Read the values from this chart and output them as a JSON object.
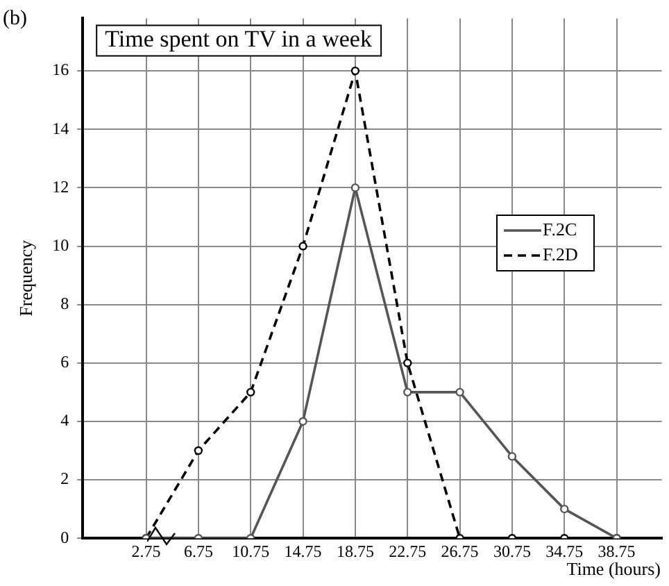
{
  "chart_data": {
    "type": "line",
    "title": "Time spent on TV in a week",
    "xlabel": "Time (hours)",
    "ylabel": "Frequency",
    "annotations": [
      "(b)"
    ],
    "x": [
      2.75,
      6.75,
      10.75,
      14.75,
      18.75,
      22.75,
      26.75,
      30.75,
      34.75,
      38.75
    ],
    "series": [
      {
        "name": "F.2C",
        "color": "#555555",
        "line_style": "solid",
        "values": [
          0,
          0,
          0,
          4,
          12,
          5,
          5,
          2.8,
          1,
          0
        ]
      },
      {
        "name": "F.2D",
        "color": "#000000",
        "line_style": "dashed",
        "values": [
          0,
          3,
          5,
          10,
          16,
          6,
          0,
          0,
          0,
          0
        ]
      }
    ],
    "xlim": [
      -2.1,
      42.2
    ],
    "xticks": [
      2.75,
      6.75,
      10.75,
      14.75,
      18.75,
      22.75,
      26.75,
      30.75,
      34.75,
      38.75
    ],
    "ylim": [
      0,
      17.8
    ],
    "yticks": [
      0,
      2,
      4,
      6,
      8,
      10,
      12,
      14,
      16
    ],
    "grid": true,
    "legend": "right",
    "marker": "circle"
  }
}
